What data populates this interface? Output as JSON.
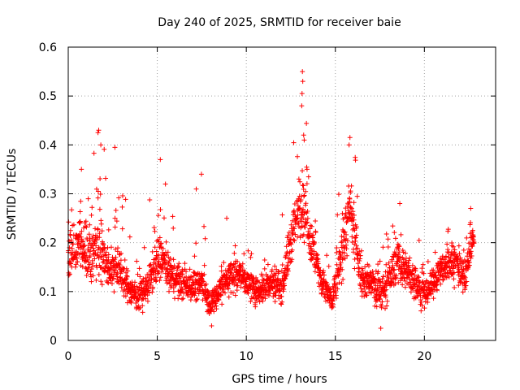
{
  "chart_data": {
    "type": "scatter",
    "title": "Day 240 of 2025, SRMTID for receiver baie",
    "xlabel": "GPS time / hours",
    "ylabel": "SRMTID / TECUs",
    "xlim": [
      0,
      24
    ],
    "ylim": [
      0,
      0.6
    ],
    "x_ticks": [
      0,
      5,
      10,
      15,
      20
    ],
    "x_tick_labels": [
      "0",
      "5",
      "10",
      "15",
      "20"
    ],
    "y_ticks": [
      0,
      0.1,
      0.2,
      0.3,
      0.4,
      0.5,
      0.6
    ],
    "y_tick_labels": [
      "0",
      "0.1",
      "0.2",
      "0.3",
      "0.4",
      "0.5",
      "0.6"
    ],
    "grid": true,
    "marker": "+",
    "series_color": "#ff0000",
    "data_extent_hours": [
      0,
      22.8
    ],
    "envelope": [
      {
        "t": 0.0,
        "median": 0.16,
        "spread": 0.07,
        "max": 0.24
      },
      {
        "t": 0.5,
        "median": 0.2,
        "spread": 0.09,
        "max": 0.35
      },
      {
        "t": 1.0,
        "median": 0.18,
        "spread": 0.09,
        "max": 0.3
      },
      {
        "t": 1.7,
        "median": 0.2,
        "spread": 0.1,
        "max": 0.43
      },
      {
        "t": 2.3,
        "median": 0.14,
        "spread": 0.06,
        "max": 0.3
      },
      {
        "t": 2.7,
        "median": 0.16,
        "spread": 0.07,
        "max": 0.39
      },
      {
        "t": 3.5,
        "median": 0.1,
        "spread": 0.04,
        "max": 0.17
      },
      {
        "t": 4.2,
        "median": 0.09,
        "spread": 0.04,
        "max": 0.16
      },
      {
        "t": 5.0,
        "median": 0.16,
        "spread": 0.07,
        "max": 0.3
      },
      {
        "t": 5.2,
        "median": 0.17,
        "spread": 0.07,
        "max": 0.37
      },
      {
        "t": 6.0,
        "median": 0.12,
        "spread": 0.05,
        "max": 0.19
      },
      {
        "t": 7.0,
        "median": 0.11,
        "spread": 0.04,
        "max": 0.17
      },
      {
        "t": 7.5,
        "median": 0.12,
        "spread": 0.05,
        "max": 0.34
      },
      {
        "t": 8.0,
        "median": 0.07,
        "spread": 0.03,
        "max": 0.15
      },
      {
        "t": 8.7,
        "median": 0.12,
        "spread": 0.05,
        "max": 0.25
      },
      {
        "t": 9.5,
        "median": 0.14,
        "spread": 0.05,
        "max": 0.22
      },
      {
        "t": 10.5,
        "median": 0.1,
        "spread": 0.04,
        "max": 0.17
      },
      {
        "t": 11.5,
        "median": 0.12,
        "spread": 0.05,
        "max": 0.2
      },
      {
        "t": 12.0,
        "median": 0.11,
        "spread": 0.05,
        "max": 0.21
      },
      {
        "t": 12.6,
        "median": 0.22,
        "spread": 0.08,
        "max": 0.37
      },
      {
        "t": 13.1,
        "median": 0.28,
        "spread": 0.1,
        "max": 0.55
      },
      {
        "t": 13.5,
        "median": 0.22,
        "spread": 0.07,
        "max": 0.3
      },
      {
        "t": 14.2,
        "median": 0.12,
        "spread": 0.05,
        "max": 0.18
      },
      {
        "t": 14.8,
        "median": 0.08,
        "spread": 0.04,
        "max": 0.15
      },
      {
        "t": 15.5,
        "median": 0.2,
        "spread": 0.09,
        "max": 0.33
      },
      {
        "t": 15.8,
        "median": 0.27,
        "spread": 0.1,
        "max": 0.41
      },
      {
        "t": 16.5,
        "median": 0.12,
        "spread": 0.05,
        "max": 0.18
      },
      {
        "t": 17.0,
        "median": 0.12,
        "spread": 0.05,
        "max": 0.19
      },
      {
        "t": 17.5,
        "median": 0.09,
        "spread": 0.05,
        "max": 0.2
      },
      {
        "t": 18.5,
        "median": 0.16,
        "spread": 0.06,
        "max": 0.28
      },
      {
        "t": 19.5,
        "median": 0.12,
        "spread": 0.05,
        "max": 0.22
      },
      {
        "t": 20.0,
        "median": 0.09,
        "spread": 0.04,
        "max": 0.17
      },
      {
        "t": 21.0,
        "median": 0.15,
        "spread": 0.05,
        "max": 0.22
      },
      {
        "t": 21.8,
        "median": 0.16,
        "spread": 0.06,
        "max": 0.24
      },
      {
        "t": 22.3,
        "median": 0.13,
        "spread": 0.05,
        "max": 0.2
      },
      {
        "t": 22.8,
        "median": 0.23,
        "spread": 0.04,
        "max": 0.28
      }
    ],
    "peaks": [
      {
        "t": 1.71,
        "y": 0.43
      },
      {
        "t": 1.67,
        "y": 0.425
      },
      {
        "t": 1.83,
        "y": 0.4
      },
      {
        "t": 2.62,
        "y": 0.395
      },
      {
        "t": 0.74,
        "y": 0.35
      },
      {
        "t": 5.17,
        "y": 0.37
      },
      {
        "t": 7.48,
        "y": 0.34
      },
      {
        "t": 13.15,
        "y": 0.55
      },
      {
        "t": 13.17,
        "y": 0.53
      },
      {
        "t": 13.13,
        "y": 0.505
      },
      {
        "t": 13.11,
        "y": 0.48
      },
      {
        "t": 13.22,
        "y": 0.42
      },
      {
        "t": 13.25,
        "y": 0.41
      },
      {
        "t": 15.82,
        "y": 0.415
      },
      {
        "t": 15.77,
        "y": 0.4
      },
      {
        "t": 8.9,
        "y": 0.25
      },
      {
        "t": 18.62,
        "y": 0.28
      },
      {
        "t": 17.55,
        "y": 0.025
      },
      {
        "t": 8.05,
        "y": 0.03
      },
      {
        "t": 22.6,
        "y": 0.27
      }
    ],
    "seed": 240
  }
}
